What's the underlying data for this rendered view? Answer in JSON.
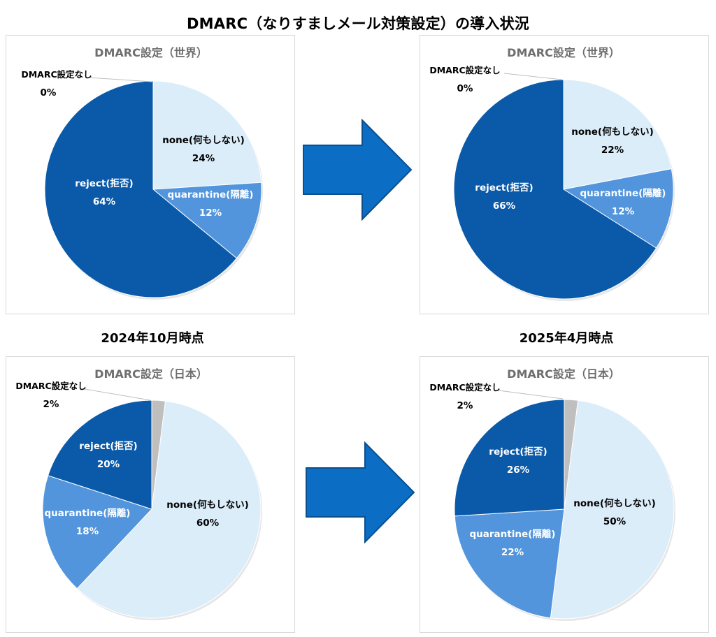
{
  "title": "DMARC（なりすましメール対策設定）の導入状況",
  "periods": {
    "before": "2024年10月時点",
    "after": "2025年4月時点"
  },
  "colors": {
    "reject": "#0b5aa9",
    "quarantine": "#5295dc",
    "none": "#dcedfa",
    "unset": "#bfbfbf",
    "arrow": "#0b6dc3",
    "title_gray": "#6e6e6e"
  },
  "chart_data": [
    {
      "type": "pie",
      "title": "DMARC設定（世界）",
      "period": "2024年10月時点",
      "slices": [
        {
          "key": "unset",
          "label": "DMARC設定なし",
          "value": 0,
          "text": "0%"
        },
        {
          "key": "none",
          "label": "none(何もしない)",
          "value": 24,
          "text": "24%"
        },
        {
          "key": "quarantine",
          "label": "quarantine(隔離)",
          "value": 12,
          "text": "12%"
        },
        {
          "key": "reject",
          "label": "reject(拒否)",
          "value": 64,
          "text": "64%"
        }
      ]
    },
    {
      "type": "pie",
      "title": "DMARC設定（世界）",
      "period": "2025年4月時点",
      "slices": [
        {
          "key": "unset",
          "label": "DMARC設定なし",
          "value": 0,
          "text": "0%"
        },
        {
          "key": "none",
          "label": "none(何もしない)",
          "value": 22,
          "text": "22%"
        },
        {
          "key": "quarantine",
          "label": "quarantine(隔離)",
          "value": 12,
          "text": "12%"
        },
        {
          "key": "reject",
          "label": "reject(拒否)",
          "value": 66,
          "text": "66%"
        }
      ]
    },
    {
      "type": "pie",
      "title": "DMARC設定（日本）",
      "period": "2024年10月時点",
      "slices": [
        {
          "key": "unset",
          "label": "DMARC設定なし",
          "value": 2,
          "text": "2%"
        },
        {
          "key": "none",
          "label": "none(何もしない)",
          "value": 60,
          "text": "60%"
        },
        {
          "key": "quarantine",
          "label": "quarantine(隔離)",
          "value": 18,
          "text": "18%"
        },
        {
          "key": "reject",
          "label": "reject(拒否)",
          "value": 20,
          "text": "20%"
        }
      ]
    },
    {
      "type": "pie",
      "title": "DMARC設定（日本）",
      "period": "2025年4月時点",
      "slices": [
        {
          "key": "unset",
          "label": "DMARC設定なし",
          "value": 2,
          "text": "2%"
        },
        {
          "key": "none",
          "label": "none(何もしない)",
          "value": 50,
          "text": "50%"
        },
        {
          "key": "quarantine",
          "label": "quarantine(隔離)",
          "value": 22,
          "text": "22%"
        },
        {
          "key": "reject",
          "label": "reject(拒否)",
          "value": 26,
          "text": "26%"
        }
      ]
    }
  ]
}
